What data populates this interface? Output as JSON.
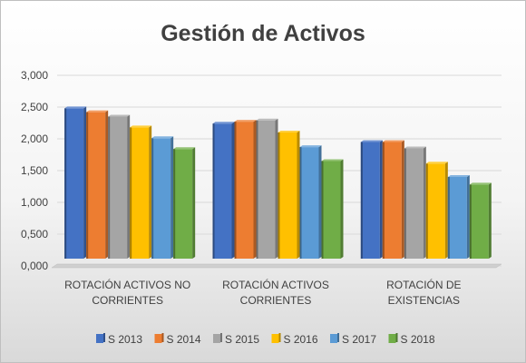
{
  "chart_data": {
    "type": "bar",
    "title": "Gestión de Activos",
    "xlabel": "",
    "ylabel": "",
    "ylim": [
      0,
      3
    ],
    "yticks": [
      "0,000",
      "0,500",
      "1,000",
      "1,500",
      "2,000",
      "2,500",
      "3,000"
    ],
    "grid": true,
    "legend_position": "bottom",
    "categories": [
      [
        "ROTACIÓN ACTIVOS NO",
        "CORRIENTES"
      ],
      [
        "ROTACIÓN ACTIVOS",
        "CORRIENTES"
      ],
      [
        "ROTACIÓN DE",
        "EXISTENCIAS"
      ]
    ],
    "series": [
      {
        "name": "S 2013",
        "color": "#4472c4",
        "values": [
          2.48,
          2.24,
          1.95
        ]
      },
      {
        "name": "S 2014",
        "color": "#ed7d31",
        "values": [
          2.42,
          2.27,
          1.95
        ]
      },
      {
        "name": "S 2015",
        "color": "#a5a5a5",
        "values": [
          2.35,
          2.29,
          1.85
        ]
      },
      {
        "name": "S 2016",
        "color": "#ffc000",
        "values": [
          2.18,
          2.1,
          1.61
        ]
      },
      {
        "name": "S 2017",
        "color": "#5b9bd5",
        "values": [
          2.01,
          1.87,
          1.4
        ]
      },
      {
        "name": "S 2018",
        "color": "#70ad47",
        "values": [
          1.84,
          1.65,
          1.28
        ]
      }
    ]
  }
}
